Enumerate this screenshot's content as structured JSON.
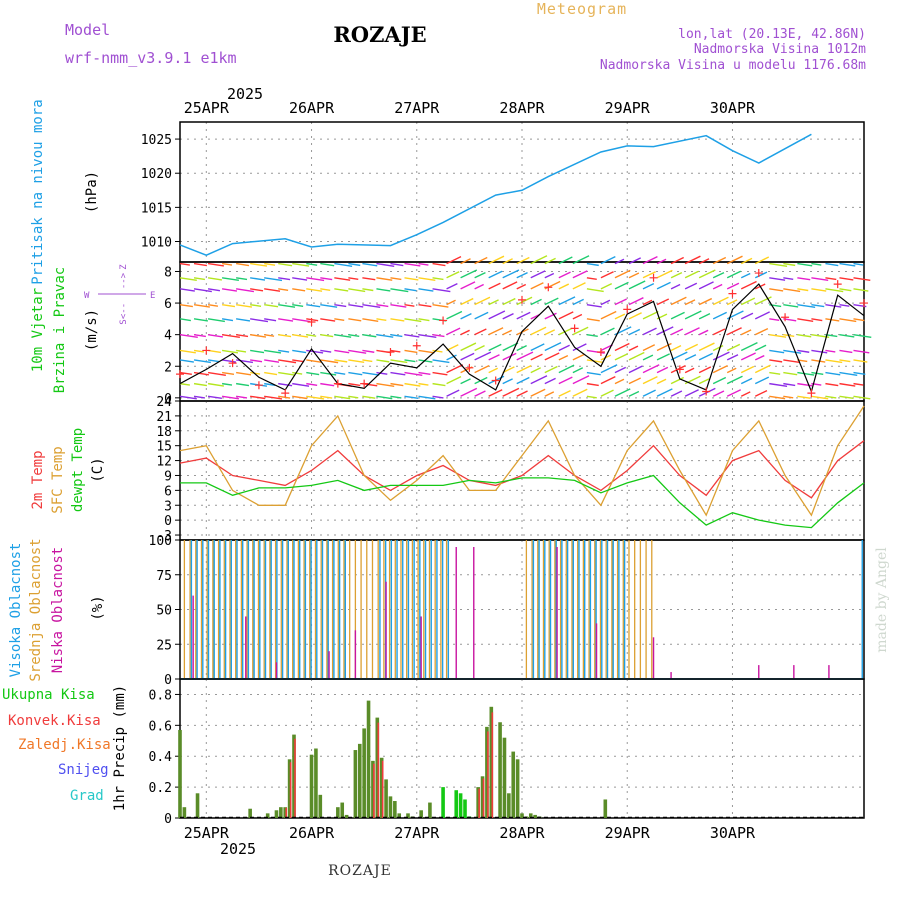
{
  "header": {
    "meteogram_label": "Meteogram",
    "title": "ROZAJE",
    "model_label": "Model",
    "model_name": "wrf-nmm_v3.9.1 e1km",
    "location": "lon,lat (20.13E, 42.86N)",
    "elevation": "Nadmorska Visina 1012m",
    "model_elevation": "Nadmorska Visina u modelu 1176.68m",
    "footer_title": "ROZAJE",
    "watermark": "made by Angel"
  },
  "time_axis": {
    "year": "2025",
    "dates": [
      "25APR",
      "26APR",
      "27APR",
      "28APR",
      "29APR",
      "30APR"
    ]
  },
  "colors": {
    "pressure": "#1ea0e6",
    "wind_speed": "#000000",
    "gust": "#ff3030",
    "temp_2m": "#f03c3c",
    "temp_sfc": "#dca032",
    "dewpoint": "#14c814",
    "cloud_high": "#1ea0e6",
    "cloud_mid": "#dca032",
    "cloud_low": "#c814a0",
    "precip_total": "#14c814",
    "precip_conv": "#f03c3c",
    "precip_frz": "#f07828",
    "precip_snow": "#5050f0",
    "precip_hail": "#28c8c8"
  },
  "panels": {
    "pressure": {
      "label": "Pritisak na nivou mora",
      "unit": "(hPa)"
    },
    "wind": {
      "label1": "10m Vjetar",
      "label2": "Brzina i Pravac",
      "unit": "(m/s)",
      "compass_w": "W",
      "compass_e": "E",
      "compass_n": "<--",
      "compass_arrow": "-->",
      "compass_s": "S",
      "compass_z": "Z"
    },
    "temp": {
      "label1": "2m Temp",
      "label2": "SFC Temp",
      "label3": "dewpt Temp",
      "unit": "(C)"
    },
    "cloud": {
      "label1": "Visoka Oblacnost",
      "label2": "Srednja Oblacnost",
      "label3": "Niska Oblacnost",
      "unit": "(%)"
    },
    "precip": {
      "label1": "Ukupna Kisa",
      "label2": "Konvek.Kisa",
      "label3": "Zaledj.Kisa",
      "label4": "Snijeg",
      "label5": "Grad",
      "unit": "1hr Precip (mm)"
    }
  },
  "chart_data": [
    {
      "type": "line",
      "name": "pressure",
      "x_hours": [
        0,
        6,
        12,
        24,
        30,
        36,
        48,
        54,
        60,
        72,
        78,
        84,
        96,
        102,
        108,
        120,
        126,
        132,
        144
      ],
      "ylim": [
        1007,
        1027.5
      ],
      "yticks": [
        1010,
        1015,
        1020,
        1025
      ],
      "series": [
        {
          "name": "Pritisak na nivou mora",
          "values": [
            1009.5,
            1008.0,
            1009.7,
            1010.4,
            1009.2,
            1009.6,
            1009.4,
            1011.0,
            1012.8,
            1016.8,
            1017.5,
            1019.5,
            1023.1,
            1024.0,
            1023.9,
            1025.5,
            1023.3,
            1021.5,
            1025.7
          ]
        }
      ]
    },
    {
      "type": "scatter",
      "name": "wind",
      "ylim": [
        -0.2,
        8.6
      ],
      "yticks": [
        0,
        2,
        4,
        6,
        8
      ],
      "series": [
        {
          "name": "speed",
          "x_hours": [
            0,
            6,
            12,
            18,
            24,
            30,
            36,
            42,
            48,
            54,
            60,
            66,
            72,
            78,
            84,
            90,
            96,
            102,
            108,
            114,
            120,
            126,
            132,
            138,
            144,
            150,
            156
          ],
          "values": [
            0.9,
            1.8,
            2.8,
            1.3,
            0.5,
            3.1,
            0.9,
            0.6,
            2.2,
            1.9,
            3.4,
            1.5,
            0.5,
            4.2,
            5.8,
            3.2,
            2.0,
            5.3,
            6.1,
            1.2,
            0.5,
            5.6,
            7.2,
            4.5,
            0.4,
            6.5,
            5.2
          ]
        },
        {
          "name": "gust",
          "x_hours": [
            0,
            6,
            12,
            18,
            24,
            30,
            36,
            42,
            48,
            54,
            60,
            66,
            72,
            78,
            84,
            90,
            96,
            102,
            108,
            114,
            120,
            126,
            132,
            138,
            144,
            150,
            156
          ],
          "values": [
            1.5,
            3.0,
            2.2,
            0.8,
            0.3,
            4.8,
            0.9,
            0.9,
            2.9,
            3.3,
            4.9,
            1.9,
            1.1,
            6.2,
            7.0,
            4.4,
            2.9,
            5.6,
            7.6,
            1.8,
            0.4,
            6.6,
            7.9,
            5.1,
            0.3,
            7.2,
            6.0
          ]
        }
      ]
    },
    {
      "type": "line",
      "name": "temperature",
      "x_hours": [
        0,
        6,
        12,
        18,
        24,
        30,
        36,
        42,
        48,
        54,
        60,
        66,
        72,
        78,
        84,
        90,
        96,
        102,
        108,
        114,
        120,
        126,
        132,
        138,
        144,
        150,
        156
      ],
      "ylim": [
        -4,
        24
      ],
      "yticks": [
        -3,
        0,
        3,
        6,
        9,
        12,
        15,
        18,
        21,
        24
      ],
      "series": [
        {
          "name": "2m Temp",
          "values": [
            11.5,
            12.5,
            9,
            8,
            7,
            10,
            14,
            9,
            6,
            9,
            11,
            8,
            7,
            9,
            13,
            9,
            6,
            10,
            15,
            9,
            5,
            12,
            14,
            8,
            4.5,
            12,
            16
          ]
        },
        {
          "name": "SFC Temp",
          "values": [
            14,
            15,
            6,
            3,
            3,
            15,
            21,
            9,
            4,
            8,
            13,
            6,
            6,
            13,
            20,
            9,
            3,
            14,
            20,
            10,
            1,
            14,
            20,
            9,
            1,
            15,
            23
          ]
        },
        {
          "name": "dewpt Temp",
          "values": [
            7.5,
            7.5,
            5,
            6.5,
            6.5,
            7,
            8,
            6,
            7,
            7,
            7,
            8,
            7.5,
            8.5,
            8.5,
            8,
            5.5,
            7.5,
            9,
            3.5,
            -1,
            1.5,
            0,
            -1,
            -1.5,
            3.5,
            7.5
          ]
        }
      ]
    },
    {
      "type": "bar",
      "name": "cloud_cover",
      "ylim": [
        0,
        100
      ],
      "yticks": [
        0,
        25,
        50,
        75,
        100
      ],
      "series": [
        {
          "name": "Visoka Oblacnost",
          "x_hours_range": [
            [
              2,
              38
            ],
            [
              45,
              62
            ],
            [
              80,
              102
            ],
            [
              155,
              156
            ]
          ],
          "value": 100
        },
        {
          "name": "Srednja Oblacnost",
          "x_hours_range": [
            [
              1,
              62
            ],
            [
              79,
              108
            ]
          ],
          "value": 100
        },
        {
          "name": "Niska Oblacnost",
          "x_hours": [
            3,
            15,
            22,
            34,
            40,
            47,
            55,
            63,
            67,
            86,
            95,
            108,
            112,
            132,
            140,
            148
          ],
          "values": [
            60,
            45,
            12,
            20,
            35,
            70,
            45,
            95,
            95,
            95,
            40,
            30,
            5,
            10,
            10,
            10
          ]
        }
      ]
    },
    {
      "type": "bar",
      "name": "precipitation",
      "ylim": [
        0,
        0.9
      ],
      "yticks": [
        0,
        0.2,
        0.4,
        0.6,
        0.8
      ],
      "series": [
        {
          "name": "Ukupna Kisa",
          "x_hours": [
            0,
            1,
            4,
            16,
            20,
            22,
            23,
            24,
            25,
            26,
            30,
            31,
            32,
            36,
            37,
            38,
            40,
            41,
            42,
            43,
            44,
            45,
            46,
            47,
            48,
            49,
            50,
            52,
            53,
            55,
            57,
            60,
            63,
            64,
            65,
            66,
            68,
            69,
            70,
            71,
            73,
            74,
            75,
            76,
            77,
            78,
            79,
            80,
            81,
            82,
            97
          ],
          "values": [
            0.57,
            0.07,
            0.16,
            0.06,
            0.03,
            0.05,
            0.07,
            0.07,
            0.38,
            0.54,
            0.41,
            0.45,
            0.15,
            0.07,
            0.1,
            0.02,
            0.44,
            0.48,
            0.58,
            0.76,
            0.37,
            0.65,
            0.39,
            0.25,
            0.14,
            0.11,
            0.03,
            0.03,
            0.01,
            0.05,
            0.1,
            0.2,
            0.18,
            0.16,
            0.12,
            0.01,
            0.2,
            0.27,
            0.59,
            0.72,
            0.62,
            0.52,
            0.16,
            0.43,
            0.38,
            0.03,
            0.01,
            0.03,
            0.02,
            0.01,
            0.12
          ]
        }
      ]
    }
  ]
}
